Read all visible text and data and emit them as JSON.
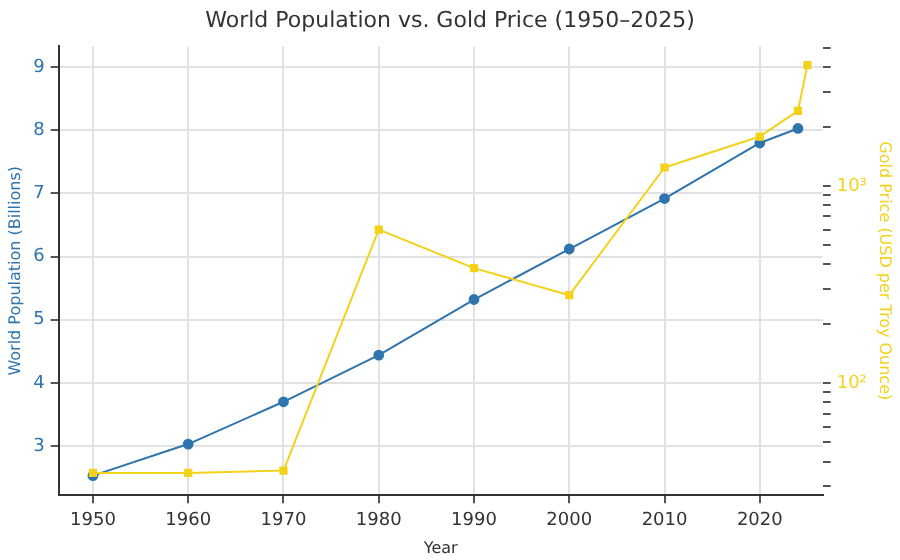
{
  "chart_data": {
    "type": "line",
    "title": "World Population vs. Gold Price (1950–2025)",
    "xlabel": "Year",
    "ylabel": "World Population (Billions)",
    "y2label": "Gold Price (USD per Troy Ounce)",
    "xlim": [
      1946.4,
      2026.6
    ],
    "xticks": [
      1950,
      1960,
      1970,
      1980,
      1990,
      2000,
      2010,
      2020
    ],
    "ylim": [
      2.22,
      9.33
    ],
    "yticks": [
      3,
      4,
      5,
      6,
      7,
      8,
      9
    ],
    "log": "y2",
    "y2lim": [
      27,
      5100
    ],
    "y2ticks": [
      {
        "value": 30,
        "label": null
      },
      {
        "value": 40,
        "label": null
      },
      {
        "value": 50,
        "label": null
      },
      {
        "value": 60,
        "label": null
      },
      {
        "value": 70,
        "label": null
      },
      {
        "value": 80,
        "label": null
      },
      {
        "value": 90,
        "label": null
      },
      {
        "value": 100,
        "label": "10²"
      },
      {
        "value": 200,
        "label": null
      },
      {
        "value": 300,
        "label": null
      },
      {
        "value": 400,
        "label": null
      },
      {
        "value": 500,
        "label": null
      },
      {
        "value": 600,
        "label": null
      },
      {
        "value": 700,
        "label": null
      },
      {
        "value": 800,
        "label": null
      },
      {
        "value": 900,
        "label": null
      },
      {
        "value": 1000,
        "label": "10³"
      },
      {
        "value": 2000,
        "label": null
      },
      {
        "value": 3000,
        "label": null
      },
      {
        "value": 4000,
        "label": null
      },
      {
        "value": 5000,
        "label": null
      }
    ],
    "grid": true,
    "marker": "circle",
    "line_style": "solid",
    "series": [
      {
        "color": "#2e74ae",
        "x": [
          1950,
          1960,
          1970,
          1980,
          1990,
          2000,
          2010,
          2020,
          2024
        ],
        "values": [
          2.53,
          3.03,
          3.7,
          4.44,
          5.32,
          6.12,
          6.92,
          7.8,
          8.03
        ]
      },
      {
        "color": "#f2d21b",
        "axis": "y2",
        "marker": "square",
        "x": [
          1950,
          1960,
          1970,
          1980,
          1990,
          2000,
          2010,
          2020,
          2024,
          2025
        ],
        "values": [
          35,
          35,
          36,
          600,
          383,
          279,
          1240,
          1780,
          2400,
          4100
        ]
      }
    ]
  }
}
